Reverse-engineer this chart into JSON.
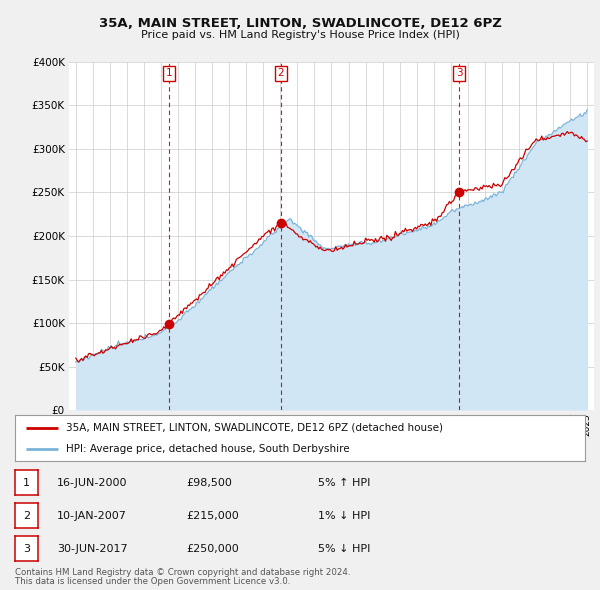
{
  "title": "35A, MAIN STREET, LINTON, SWADLINCOTE, DE12 6PZ",
  "subtitle": "Price paid vs. HM Land Registry's House Price Index (HPI)",
  "ylim": [
    0,
    400000
  ],
  "yticks": [
    0,
    50000,
    100000,
    150000,
    200000,
    250000,
    300000,
    350000,
    400000
  ],
  "legend_line1": "35A, MAIN STREET, LINTON, SWADLINCOTE, DE12 6PZ (detached house)",
  "legend_line2": "HPI: Average price, detached house, South Derbyshire",
  "transactions": [
    {
      "num": 1,
      "date": "16-JUN-2000",
      "price": "£98,500",
      "pct": "5% ↑ HPI",
      "year": 2000.46,
      "value": 98500
    },
    {
      "num": 2,
      "date": "10-JAN-2007",
      "price": "£215,000",
      "pct": "1% ↓ HPI",
      "year": 2007.03,
      "value": 215000
    },
    {
      "num": 3,
      "date": "30-JUN-2017",
      "price": "£250,000",
      "pct": "5% ↓ HPI",
      "year": 2017.5,
      "value": 250000
    }
  ],
  "footnote1": "Contains HM Land Registry data © Crown copyright and database right 2024.",
  "footnote2": "This data is licensed under the Open Government Licence v3.0.",
  "line_color_red": "#cc0000",
  "line_color_blue": "#7ab3d8",
  "fill_color_blue": "#d0e6f5",
  "vline_color": "#cc0000",
  "bg_color": "#f0f0f0",
  "plot_bg": "#ffffff",
  "grid_color": "#cccccc"
}
